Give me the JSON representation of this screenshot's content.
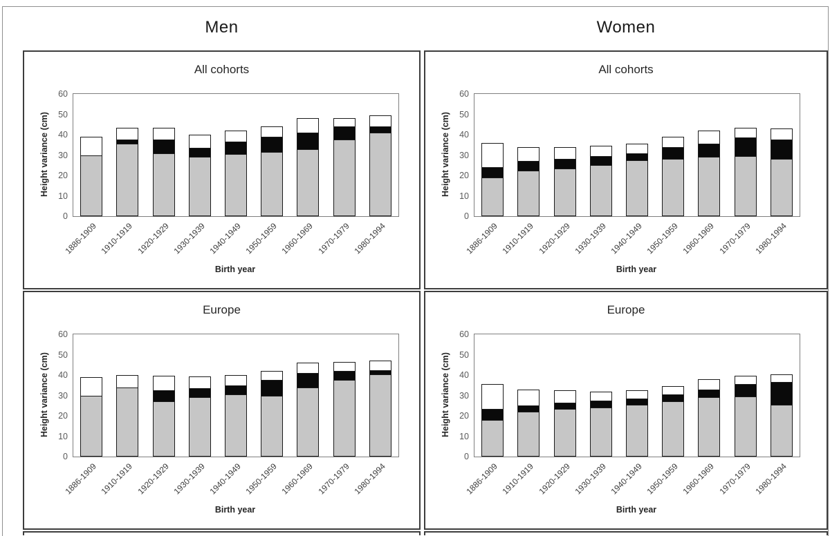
{
  "figure": {
    "column_headers": [
      {
        "label": "Men"
      },
      {
        "label": "Women"
      }
    ]
  },
  "colors": {
    "bar_gray": "#c6c6c6",
    "bar_black": "#0a0a0a",
    "bar_white": "#ffffff",
    "bar_border": "#1a1a1a",
    "panel_border": "#3d3d3d",
    "axis_box": "#7f7f7f",
    "tick_text": "#595959",
    "label_text": "#262626"
  },
  "chart_data": [
    {
      "type": "bar",
      "stacked": true,
      "group": "Men",
      "title": "All cohorts",
      "xlabel": "Birth year",
      "ylabel": "Height variance (cm)",
      "ylim": [
        0,
        60
      ],
      "yticks": [
        0,
        10,
        20,
        30,
        40,
        50,
        60
      ],
      "grid": false,
      "legend": "none",
      "categories": [
        "1886-1909",
        "1910-1919",
        "1920-1929",
        "1930-1939",
        "1940-1949",
        "1950-1959",
        "1960-1969",
        "1970-1979",
        "1980-1994"
      ],
      "series": [
        {
          "name": "gray",
          "color": "#c6c6c6",
          "values": [
            30,
            35.5,
            31,
            29,
            30.5,
            31.5,
            33,
            37.5,
            41
          ]
        },
        {
          "name": "black",
          "color": "#0a0a0a",
          "values": [
            0,
            2,
            6.5,
            4.5,
            6,
            7.5,
            8,
            6.5,
            3
          ]
        },
        {
          "name": "white",
          "color": "#ffffff",
          "values": [
            9,
            6,
            6,
            6.5,
            5.5,
            5,
            7,
            4,
            5.5
          ]
        }
      ],
      "totals": [
        39,
        43.5,
        43.5,
        40,
        42,
        44,
        48,
        48,
        49.5
      ]
    },
    {
      "type": "bar",
      "stacked": true,
      "group": "Women",
      "title": "All cohorts",
      "xlabel": "Birth year",
      "ylabel": "Height variance (cm)",
      "ylim": [
        0,
        60
      ],
      "yticks": [
        0,
        10,
        20,
        30,
        40,
        50,
        60
      ],
      "grid": false,
      "legend": "none",
      "categories": [
        "1886-1909",
        "1910-1919",
        "1920-1929",
        "1930-1939",
        "1940-1949",
        "1950-1959",
        "1960-1969",
        "1970-1979",
        "1980-1994"
      ],
      "series": [
        {
          "name": "gray",
          "color": "#c6c6c6",
          "values": [
            19,
            22.5,
            23.5,
            25,
            27.5,
            28,
            29,
            29.5,
            28
          ]
        },
        {
          "name": "black",
          "color": "#0a0a0a",
          "values": [
            5,
            4.5,
            4.5,
            4.5,
            3.5,
            6,
            6.5,
            9,
            9.5
          ]
        },
        {
          "name": "white",
          "color": "#ffffff",
          "values": [
            12,
            7,
            6,
            5,
            4.5,
            5,
            6.5,
            5,
            5.5
          ]
        }
      ],
      "totals": [
        36,
        34,
        34,
        34.5,
        35.5,
        39,
        42,
        43.5,
        43
      ]
    },
    {
      "type": "bar",
      "stacked": true,
      "group": "Men",
      "title": "Europe",
      "xlabel": "Birth year",
      "ylabel": "Height variance (cm)",
      "ylim": [
        0,
        60
      ],
      "yticks": [
        0,
        10,
        20,
        30,
        40,
        50,
        60
      ],
      "grid": false,
      "legend": "none",
      "categories": [
        "1886-1909",
        "1910-1919",
        "1920-1929",
        "1930-1939",
        "1940-1949",
        "1950-1959",
        "1960-1969",
        "1970-1979",
        "1980-1994"
      ],
      "series": [
        {
          "name": "gray",
          "color": "#c6c6c6",
          "values": [
            30,
            34,
            27,
            29,
            30.5,
            30,
            34,
            37.5,
            40.5
          ]
        },
        {
          "name": "black",
          "color": "#0a0a0a",
          "values": [
            0,
            0,
            5.5,
            4.5,
            4.5,
            7.5,
            7,
            4.5,
            2
          ]
        },
        {
          "name": "white",
          "color": "#ffffff",
          "values": [
            9,
            6,
            7,
            6,
            5,
            4.5,
            5,
            4.5,
            4.5
          ]
        }
      ],
      "totals": [
        39,
        40,
        39.5,
        39.5,
        40,
        42,
        46,
        46.5,
        47
      ]
    },
    {
      "type": "bar",
      "stacked": true,
      "group": "Women",
      "title": "Europe",
      "xlabel": "Birth year",
      "ylabel": "Height variance (cm)",
      "ylim": [
        0,
        60
      ],
      "yticks": [
        0,
        10,
        20,
        30,
        40,
        50,
        60
      ],
      "grid": false,
      "legend": "none",
      "categories": [
        "1886-1909",
        "1910-1919",
        "1920-1929",
        "1930-1939",
        "1940-1949",
        "1950-1959",
        "1960-1969",
        "1970-1979",
        "1980-1994"
      ],
      "series": [
        {
          "name": "gray",
          "color": "#c6c6c6",
          "values": [
            18,
            22,
            23.5,
            24,
            25.5,
            27,
            29,
            29.5,
            25.5
          ]
        },
        {
          "name": "black",
          "color": "#0a0a0a",
          "values": [
            5.5,
            3,
            3,
            3.5,
            3,
            3.5,
            4,
            6,
            11
          ]
        },
        {
          "name": "white",
          "color": "#ffffff",
          "values": [
            12,
            8,
            6,
            4.5,
            4,
            4,
            5,
            4,
            4
          ]
        }
      ],
      "totals": [
        35.5,
        33,
        32.5,
        32,
        32.5,
        34.5,
        38,
        39.5,
        40.5
      ]
    }
  ]
}
